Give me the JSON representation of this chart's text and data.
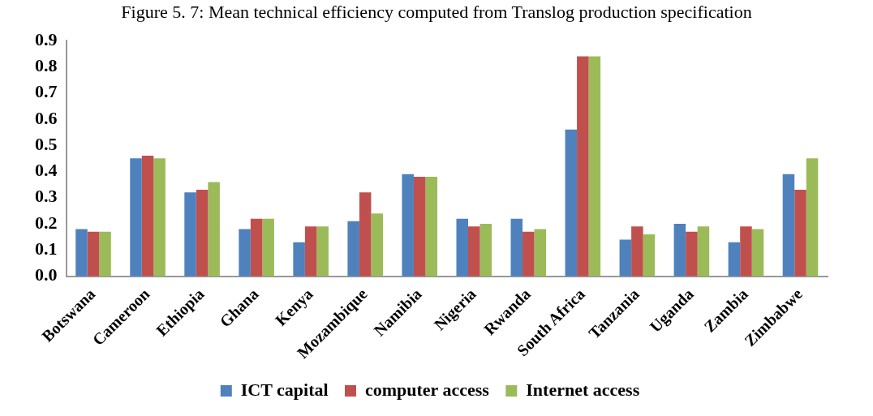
{
  "chart_data": {
    "type": "bar",
    "title": "Figure 5. 7: Mean technical efficiency computed from Translog production specification",
    "categories": [
      "Botswana",
      "Cameroon",
      "Ethiopia",
      "Ghana",
      "Kenya",
      "Mozambique",
      "Namibia",
      "Nigeria",
      "Rwanda",
      "South Africa",
      "Tanzania",
      "Uganda",
      "Zambia",
      "Zimbabwe"
    ],
    "series": [
      {
        "name": "ICT capital",
        "color": "#4f81bd",
        "values": [
          0.18,
          0.45,
          0.32,
          0.18,
          0.13,
          0.21,
          0.39,
          0.22,
          0.22,
          0.56,
          0.14,
          0.2,
          0.13,
          0.39
        ]
      },
      {
        "name": "computer access",
        "color": "#c0504d",
        "values": [
          0.17,
          0.46,
          0.33,
          0.22,
          0.19,
          0.32,
          0.38,
          0.19,
          0.17,
          0.84,
          0.19,
          0.17,
          0.19,
          0.33
        ]
      },
      {
        "name": "Internet access",
        "color": "#9bbb59",
        "values": [
          0.17,
          0.45,
          0.36,
          0.22,
          0.19,
          0.24,
          0.38,
          0.2,
          0.18,
          0.84,
          0.16,
          0.19,
          0.18,
          0.45
        ]
      }
    ],
    "ylim": [
      0,
      0.9
    ],
    "yticks": [
      {
        "value": 0,
        "label": "0.0"
      },
      0.1,
      0.2,
      0.3,
      0.4,
      0.5,
      0.6,
      0.7,
      0.8,
      0.9
    ],
    "grid": false,
    "legend": "bottom"
  }
}
